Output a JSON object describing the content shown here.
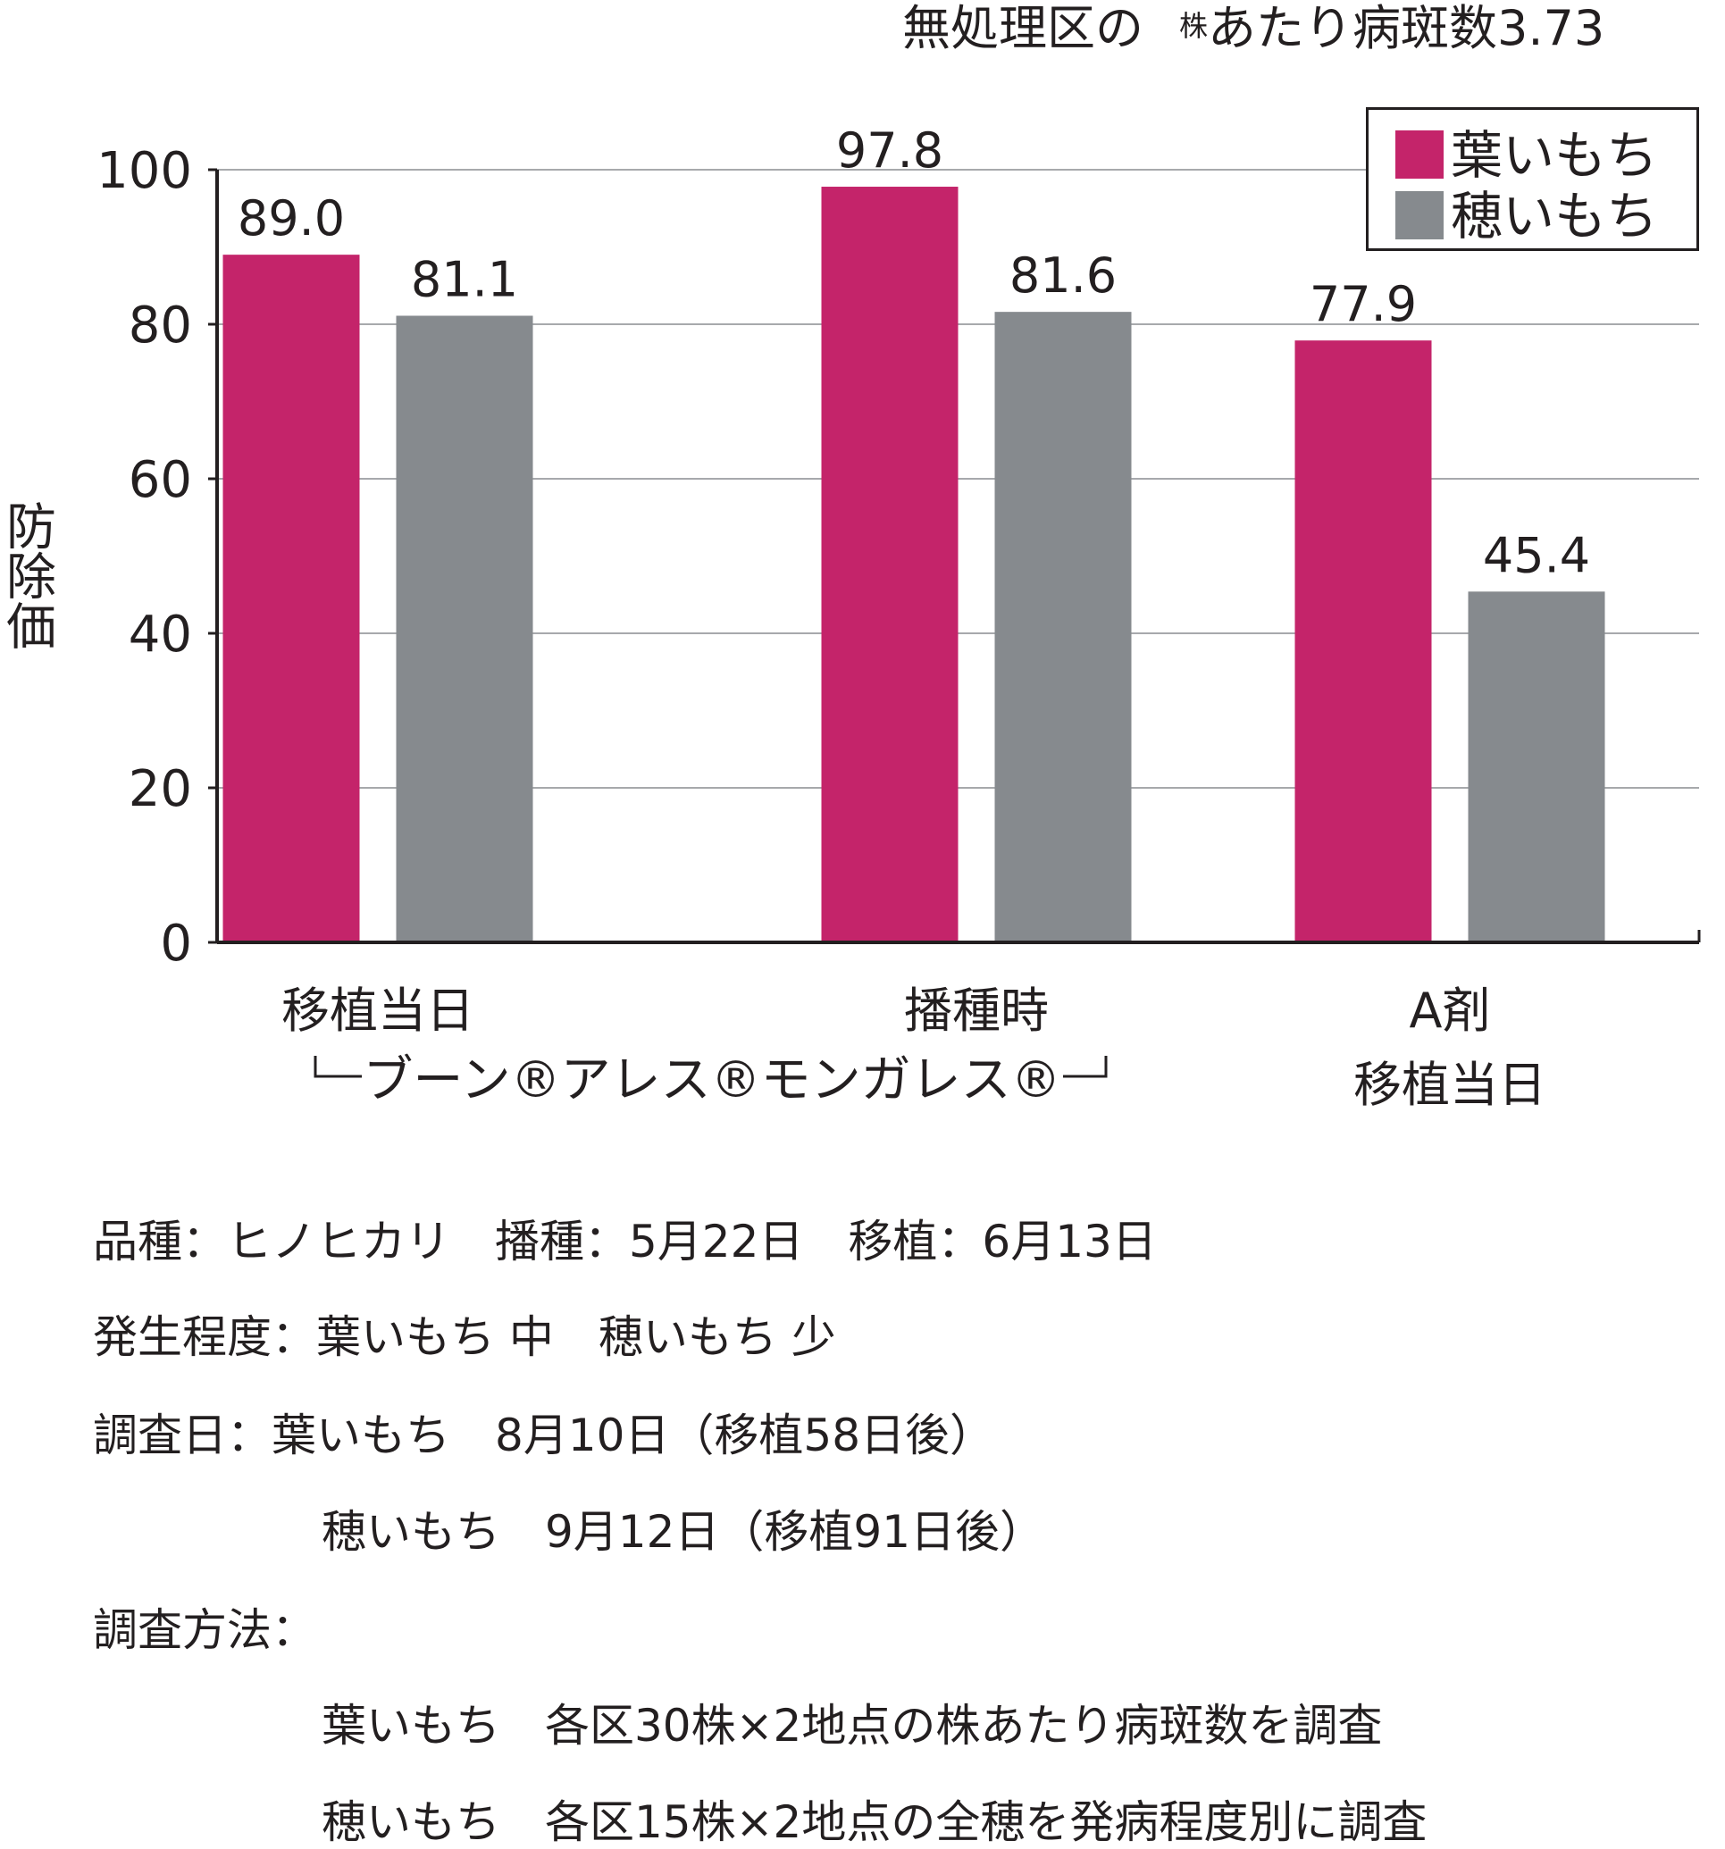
{
  "chart_data": {
    "type": "bar",
    "subtitle": "無処理区の",
    "subtitle_superscript": "株",
    "subtitle_tail": "あたり病斑数3.73",
    "ylabel": "防除価",
    "ylim": [
      0,
      100
    ],
    "yticks": [
      0,
      20,
      40,
      60,
      80,
      100
    ],
    "grid": true,
    "legend_position": "top-right",
    "categories": [
      {
        "line1": "移植当日",
        "line2": ""
      },
      {
        "line1": "播種時",
        "line2": ""
      },
      {
        "line1": "A剤",
        "line2": "移植当日"
      }
    ],
    "group_bracket": "ブーン®アレス®モンガレス®",
    "series": [
      {
        "name": "葉いもち",
        "color": "#c4246a",
        "values": [
          89.0,
          97.8,
          77.9
        ],
        "labels": [
          "89.0",
          "97.8",
          "77.9"
        ]
      },
      {
        "name": "穂いもち",
        "color": "#868a8e",
        "values": [
          81.1,
          81.6,
          45.4
        ],
        "labels": [
          "81.1",
          "81.6",
          "45.4"
        ]
      }
    ]
  },
  "notes": {
    "line1": "品種：ヒノヒカリ　播種：5月22日　移植：6月13日",
    "line2": "発生程度：葉いもち 中　穂いもち 少",
    "line3a": "調査日：葉いもち　8月10日（移植58日後）",
    "line3b": "穂いもち　9月12日（移植91日後）",
    "line4": "調査方法：",
    "line4a": "葉いもち　各区30株×2地点の株あたり病斑数を調査",
    "line4b": "穂いもち　各区15株×2地点の全穂を発病程度別に調査"
  }
}
